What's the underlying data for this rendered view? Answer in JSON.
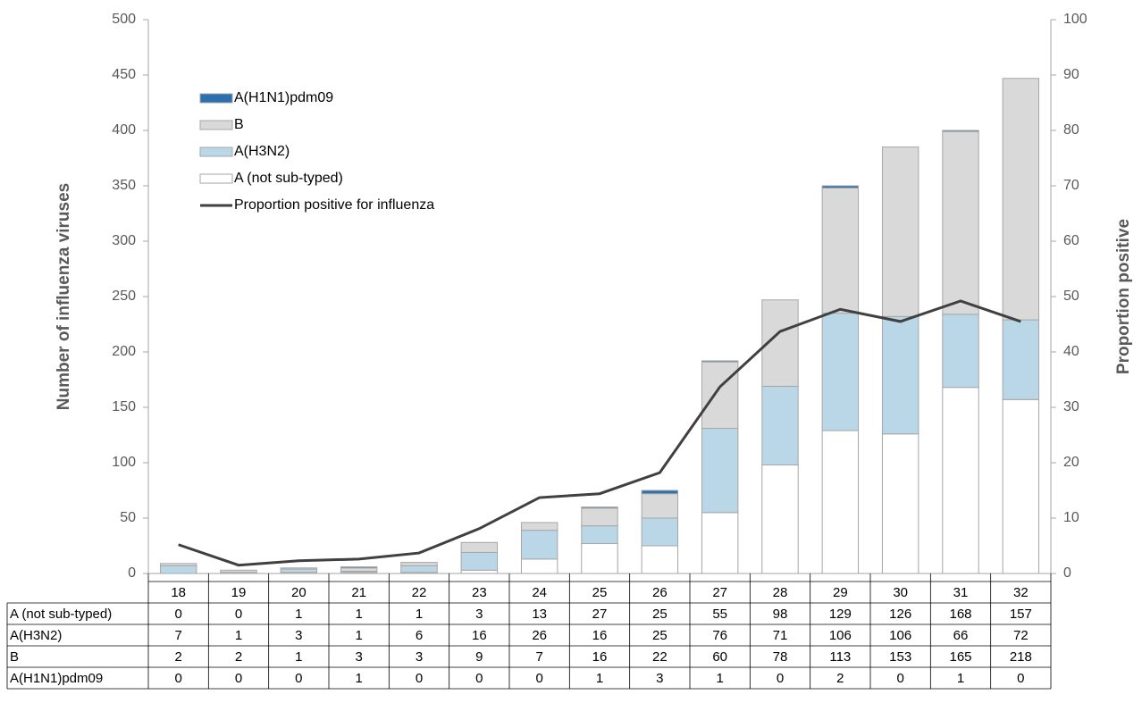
{
  "chart_data": {
    "type": "bar",
    "categories": [
      "18",
      "19",
      "20",
      "21",
      "22",
      "23",
      "24",
      "25",
      "26",
      "27",
      "28",
      "29",
      "30",
      "31",
      "32"
    ],
    "y_label": "Number of influenza viruses",
    "y2_label": "Proportion positive",
    "ylim": [
      0,
      500
    ],
    "yticks": [
      0,
      50,
      100,
      150,
      200,
      250,
      300,
      350,
      400,
      450,
      500
    ],
    "y2lim": [
      0,
      100
    ],
    "y2ticks": [
      0,
      10,
      20,
      30,
      40,
      50,
      60,
      70,
      80,
      90,
      100
    ],
    "stacked": true,
    "legend": "top-left",
    "series": [
      {
        "name": "A (not sub-typed)",
        "color": "#ffffff",
        "values": [
          0,
          0,
          1,
          1,
          1,
          3,
          13,
          27,
          25,
          55,
          98,
          129,
          126,
          168,
          157
        ]
      },
      {
        "name": "A(H3N2)",
        "color": "#bad7e8",
        "values": [
          7,
          1,
          3,
          1,
          6,
          16,
          26,
          16,
          25,
          76,
          71,
          106,
          106,
          66,
          72
        ]
      },
      {
        "name": "B",
        "color": "#d9d9d9",
        "values": [
          2,
          2,
          1,
          3,
          3,
          9,
          7,
          16,
          22,
          60,
          78,
          113,
          153,
          165,
          218
        ]
      },
      {
        "name": "A(H1N1)pdm09",
        "color": "#2e6fae",
        "values": [
          0,
          0,
          0,
          1,
          0,
          0,
          0,
          1,
          3,
          1,
          0,
          2,
          0,
          1,
          0
        ]
      },
      {
        "name": "Proportion positive for influenza",
        "type": "line",
        "axis": "y2",
        "color": "#404040",
        "values": [
          5.2,
          1.5,
          2.3,
          2.6,
          3.7,
          8.1,
          13.7,
          14.4,
          18.2,
          33.7,
          43.7,
          47.7,
          45.5,
          49.2,
          45.5
        ]
      }
    ]
  }
}
